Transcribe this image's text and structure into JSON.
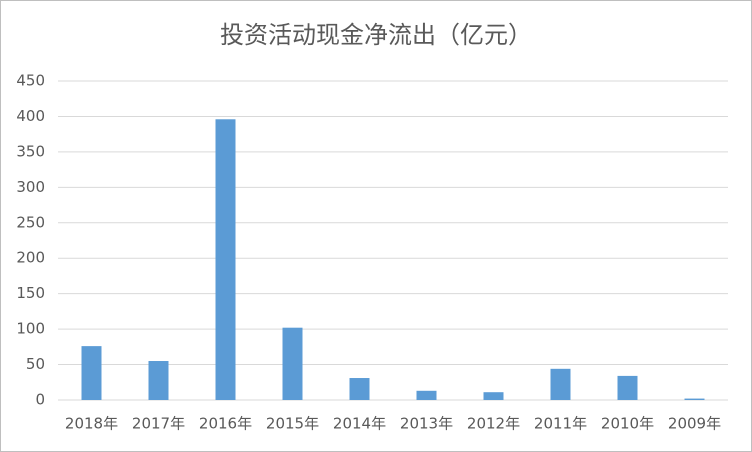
{
  "chart_data": {
    "type": "bar",
    "title": "投资活动现金净流出（亿元）",
    "categories": [
      "2018年",
      "2017年",
      "2016年",
      "2015年",
      "2014年",
      "2013年",
      "2012年",
      "2011年",
      "2010年",
      "2009年"
    ],
    "values": [
      76,
      55,
      396,
      102,
      31,
      13,
      11,
      44,
      34,
      2
    ],
    "color": "#5b9bd5",
    "ylim": [
      0,
      450
    ],
    "yticks": [
      0,
      50,
      100,
      150,
      200,
      250,
      300,
      350,
      400,
      450
    ],
    "grid": true
  }
}
